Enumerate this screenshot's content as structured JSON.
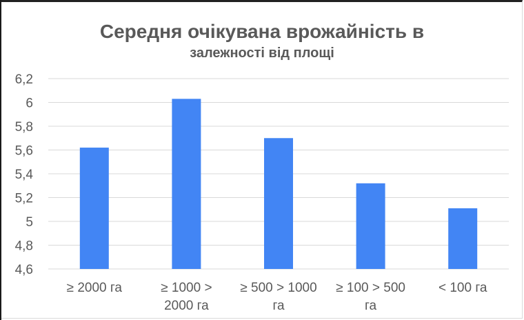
{
  "chart_data": {
    "type": "bar",
    "title": "Середня очікувана врожайність в",
    "subtitle": "залежності від площі",
    "categories": [
      [
        "≥ 2000 га"
      ],
      [
        "≥ 1000 >",
        "2000 га"
      ],
      [
        "≥ 500 > 1000",
        "га"
      ],
      [
        "≥ 100 > 500",
        "га"
      ],
      [
        "< 100 га"
      ]
    ],
    "values": [
      5.62,
      6.03,
      5.7,
      5.32,
      5.11
    ],
    "ylim": [
      4.6,
      6.2
    ],
    "yticks": [
      "6,2",
      "6",
      "5,8",
      "5,6",
      "5,4",
      "5,2",
      "5",
      "4,8",
      "4,6"
    ],
    "grid": true,
    "bar_color": "#4285f4",
    "grid_color": "#d9d9d9",
    "text_color": "#595959"
  }
}
